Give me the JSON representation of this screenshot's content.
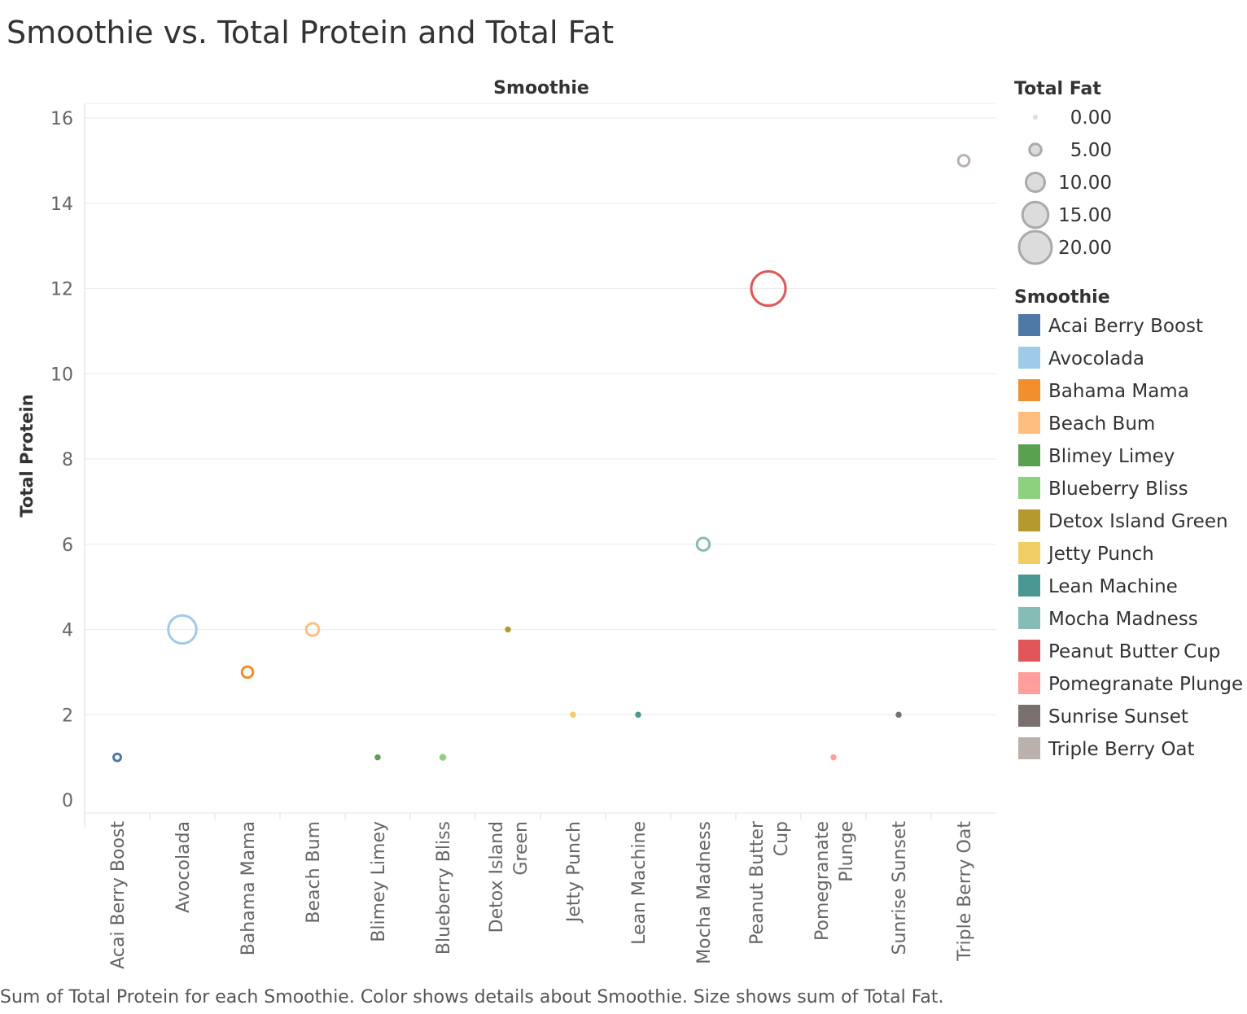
{
  "title": "Smoothie vs. Total Protein and Total Fat",
  "caption": "Sum of Total Protein for each Smoothie.  Color shows details about Smoothie.  Size shows sum of Total Fat.",
  "chart_data": {
    "type": "scatter",
    "title": "Smoothie vs. Total Protein and Total Fat",
    "column_header": "Smoothie",
    "xlabel": "",
    "ylabel": "Total Protein",
    "ylim": [
      0,
      16
    ],
    "yticks": [
      0,
      2,
      4,
      6,
      8,
      10,
      12,
      14,
      16
    ],
    "grid": true,
    "categories": [
      {
        "name": "Acai Berry Boost",
        "label_lines": [
          "Acai Berry Boost"
        ],
        "protein": 1,
        "fat": 1.5,
        "color": "#4e79a7"
      },
      {
        "name": "Avocolada",
        "label_lines": [
          "Avocolada"
        ],
        "protein": 4,
        "fat": 15,
        "color": "#a0cbe8"
      },
      {
        "name": "Bahama Mama",
        "label_lines": [
          "Bahama Mama"
        ],
        "protein": 3,
        "fat": 4,
        "color": "#f28e2b"
      },
      {
        "name": "Beach Bum",
        "label_lines": [
          "Beach Bum"
        ],
        "protein": 4,
        "fat": 5,
        "color": "#ffbe7d"
      },
      {
        "name": "Blimey Limey",
        "label_lines": [
          "Blimey Limey"
        ],
        "protein": 1,
        "fat": 0,
        "color": "#59a14f"
      },
      {
        "name": "Blueberry Bliss",
        "label_lines": [
          "Blueberry Bliss"
        ],
        "protein": 1,
        "fat": 0.5,
        "color": "#8cd17d"
      },
      {
        "name": "Detox Island Green",
        "label_lines": [
          "Detox Island",
          "Green"
        ],
        "protein": 4,
        "fat": 0,
        "color": "#b6992d"
      },
      {
        "name": "Jetty Punch",
        "label_lines": [
          "Jetty Punch"
        ],
        "protein": 2,
        "fat": 0,
        "color": "#f1ce63"
      },
      {
        "name": "Lean Machine",
        "label_lines": [
          "Lean Machine"
        ],
        "protein": 2,
        "fat": 0,
        "color": "#499894"
      },
      {
        "name": "Mocha Madness",
        "label_lines": [
          "Mocha Madness"
        ],
        "protein": 6,
        "fat": 5,
        "color": "#86bcb6"
      },
      {
        "name": "Peanut Butter Cup",
        "label_lines": [
          "Peanut Butter",
          "Cup"
        ],
        "protein": 12,
        "fat": 19,
        "color": "#e15759"
      },
      {
        "name": "Pomegranate Plunge",
        "label_lines": [
          "Pomegranate",
          "Plunge"
        ],
        "protein": 1,
        "fat": 0,
        "color": "#ff9d9a"
      },
      {
        "name": "Sunrise Sunset",
        "label_lines": [
          "Sunrise Sunset"
        ],
        "protein": 2,
        "fat": 0,
        "color": "#79706e"
      },
      {
        "name": "Triple Berry Oat",
        "label_lines": [
          "Triple Berry Oat"
        ],
        "protein": 15,
        "fat": 4,
        "color": "#bab0ac"
      }
    ],
    "size_legend": {
      "title": "Total Fat",
      "entries": [
        {
          "label": "0.00",
          "value": 0
        },
        {
          "label": "5.00",
          "value": 5
        },
        {
          "label": "10.00",
          "value": 10
        },
        {
          "label": "15.00",
          "value": 15
        },
        {
          "label": "20.00",
          "value": 20
        }
      ]
    },
    "color_legend_title": "Smoothie",
    "legend_position": "right"
  }
}
